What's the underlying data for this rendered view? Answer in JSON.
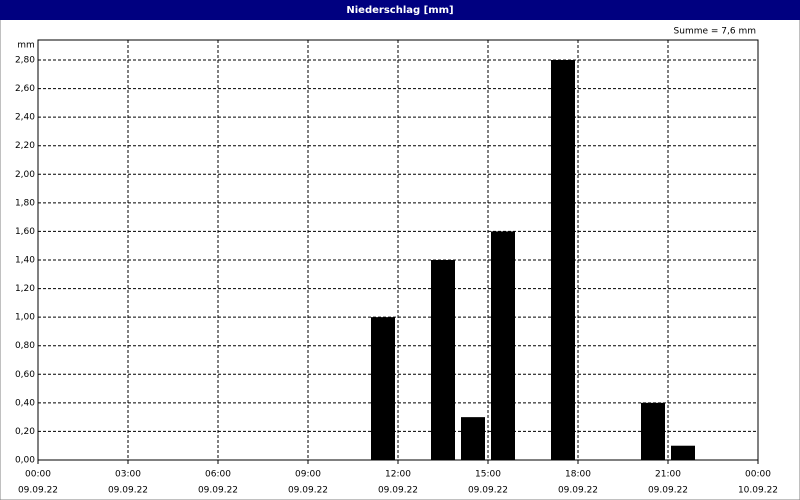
{
  "chart_data": {
    "type": "bar",
    "title": "Niederschlag [mm]",
    "y_unit": "mm",
    "annotation": "Summe = 7,6 mm",
    "x": [
      11.5,
      13.5,
      14.5,
      15.5,
      17.5,
      20.5,
      21.5
    ],
    "values": [
      1.0,
      1.4,
      0.3,
      1.6,
      2.8,
      0.4,
      0.1
    ],
    "color": "#000000",
    "xlim": [
      0,
      24
    ],
    "xticks": [
      {
        "value": 0,
        "label": [
          "00:00",
          "09.09.22"
        ]
      },
      {
        "value": 3,
        "label": [
          "03:00",
          "09.09.22"
        ]
      },
      {
        "value": 6,
        "label": [
          "06:00",
          "09.09.22"
        ]
      },
      {
        "value": 9,
        "label": [
          "09:00",
          "09.09.22"
        ]
      },
      {
        "value": 12,
        "label": [
          "12:00",
          "09.09.22"
        ]
      },
      {
        "value": 15,
        "label": [
          "15:00",
          "09.09.22"
        ]
      },
      {
        "value": 18,
        "label": [
          "18:00",
          "09.09.22"
        ]
      },
      {
        "value": 21,
        "label": [
          "21:00",
          "09.09.22"
        ]
      },
      {
        "value": 24,
        "label": [
          "00:00",
          "10.09.22"
        ]
      }
    ],
    "ylim": [
      0,
      2.94
    ],
    "yticks": [
      {
        "value": 0,
        "label": "0,00"
      },
      {
        "value": 0.2,
        "label": "0,20"
      },
      {
        "value": 0.4,
        "label": "0,40"
      },
      {
        "value": 0.6,
        "label": "0,60"
      },
      {
        "value": 0.8,
        "label": "0,80"
      },
      {
        "value": 1.0,
        "label": "1,00"
      },
      {
        "value": 1.2,
        "label": "1,20"
      },
      {
        "value": 1.4,
        "label": "1,40"
      },
      {
        "value": 1.6,
        "label": "1,60"
      },
      {
        "value": 1.8,
        "label": "1,80"
      },
      {
        "value": 2.0,
        "label": "2,00"
      },
      {
        "value": 2.2,
        "label": "2,20"
      },
      {
        "value": 2.4,
        "label": "2,40"
      },
      {
        "value": 2.6,
        "label": "2,60"
      },
      {
        "value": 2.8,
        "label": "2,80"
      }
    ],
    "grid": true
  }
}
